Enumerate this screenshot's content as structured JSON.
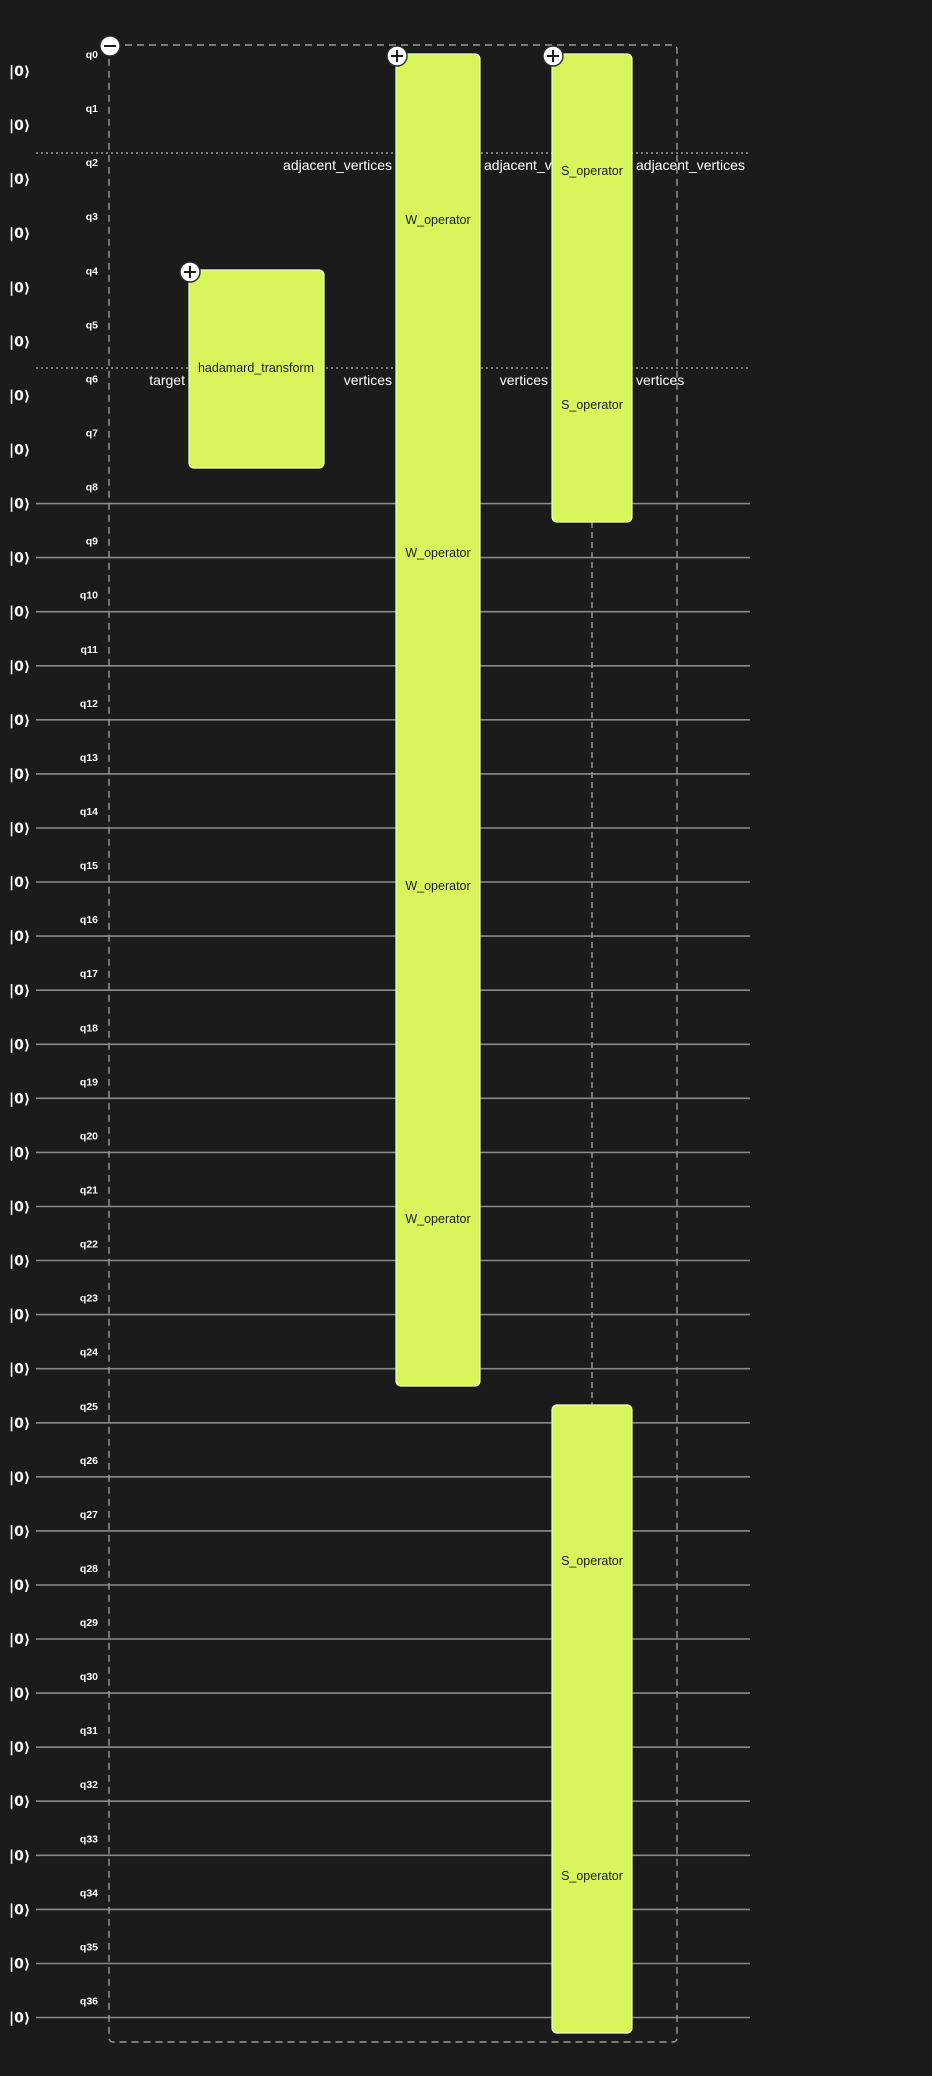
{
  "ket_label": "|0⟩",
  "qubits": [
    "q0",
    "q1",
    "q2",
    "q3",
    "q4",
    "q5",
    "q6",
    "q7",
    "q8",
    "q9",
    "q10",
    "q11",
    "q12",
    "q13",
    "q14",
    "q15",
    "q16",
    "q17",
    "q18",
    "q19",
    "q20",
    "q21",
    "q22",
    "q23",
    "q24",
    "q25",
    "q26",
    "q27",
    "q28",
    "q29",
    "q30",
    "q31",
    "q32",
    "q33",
    "q34",
    "q35",
    "q36"
  ],
  "register_labels": {
    "left_top": "adjacent_vertices",
    "left_bottom": "vertices",
    "middle_top": "adjacent_vertices",
    "middle_bottom": "vertices",
    "right_top": "adjacent_vertices",
    "right_bottom": "vertices",
    "target": "target"
  },
  "gates": {
    "hadamard": "hadamard_transform",
    "w_operator": "W_operator",
    "s_operator": "S_operator"
  },
  "icons": {
    "collapse": "minus-icon",
    "expand": "plus-icon"
  },
  "colors": {
    "background": "#1b1b1b",
    "gate_fill": "#d9f55c",
    "wire": "#8a8a8a"
  }
}
